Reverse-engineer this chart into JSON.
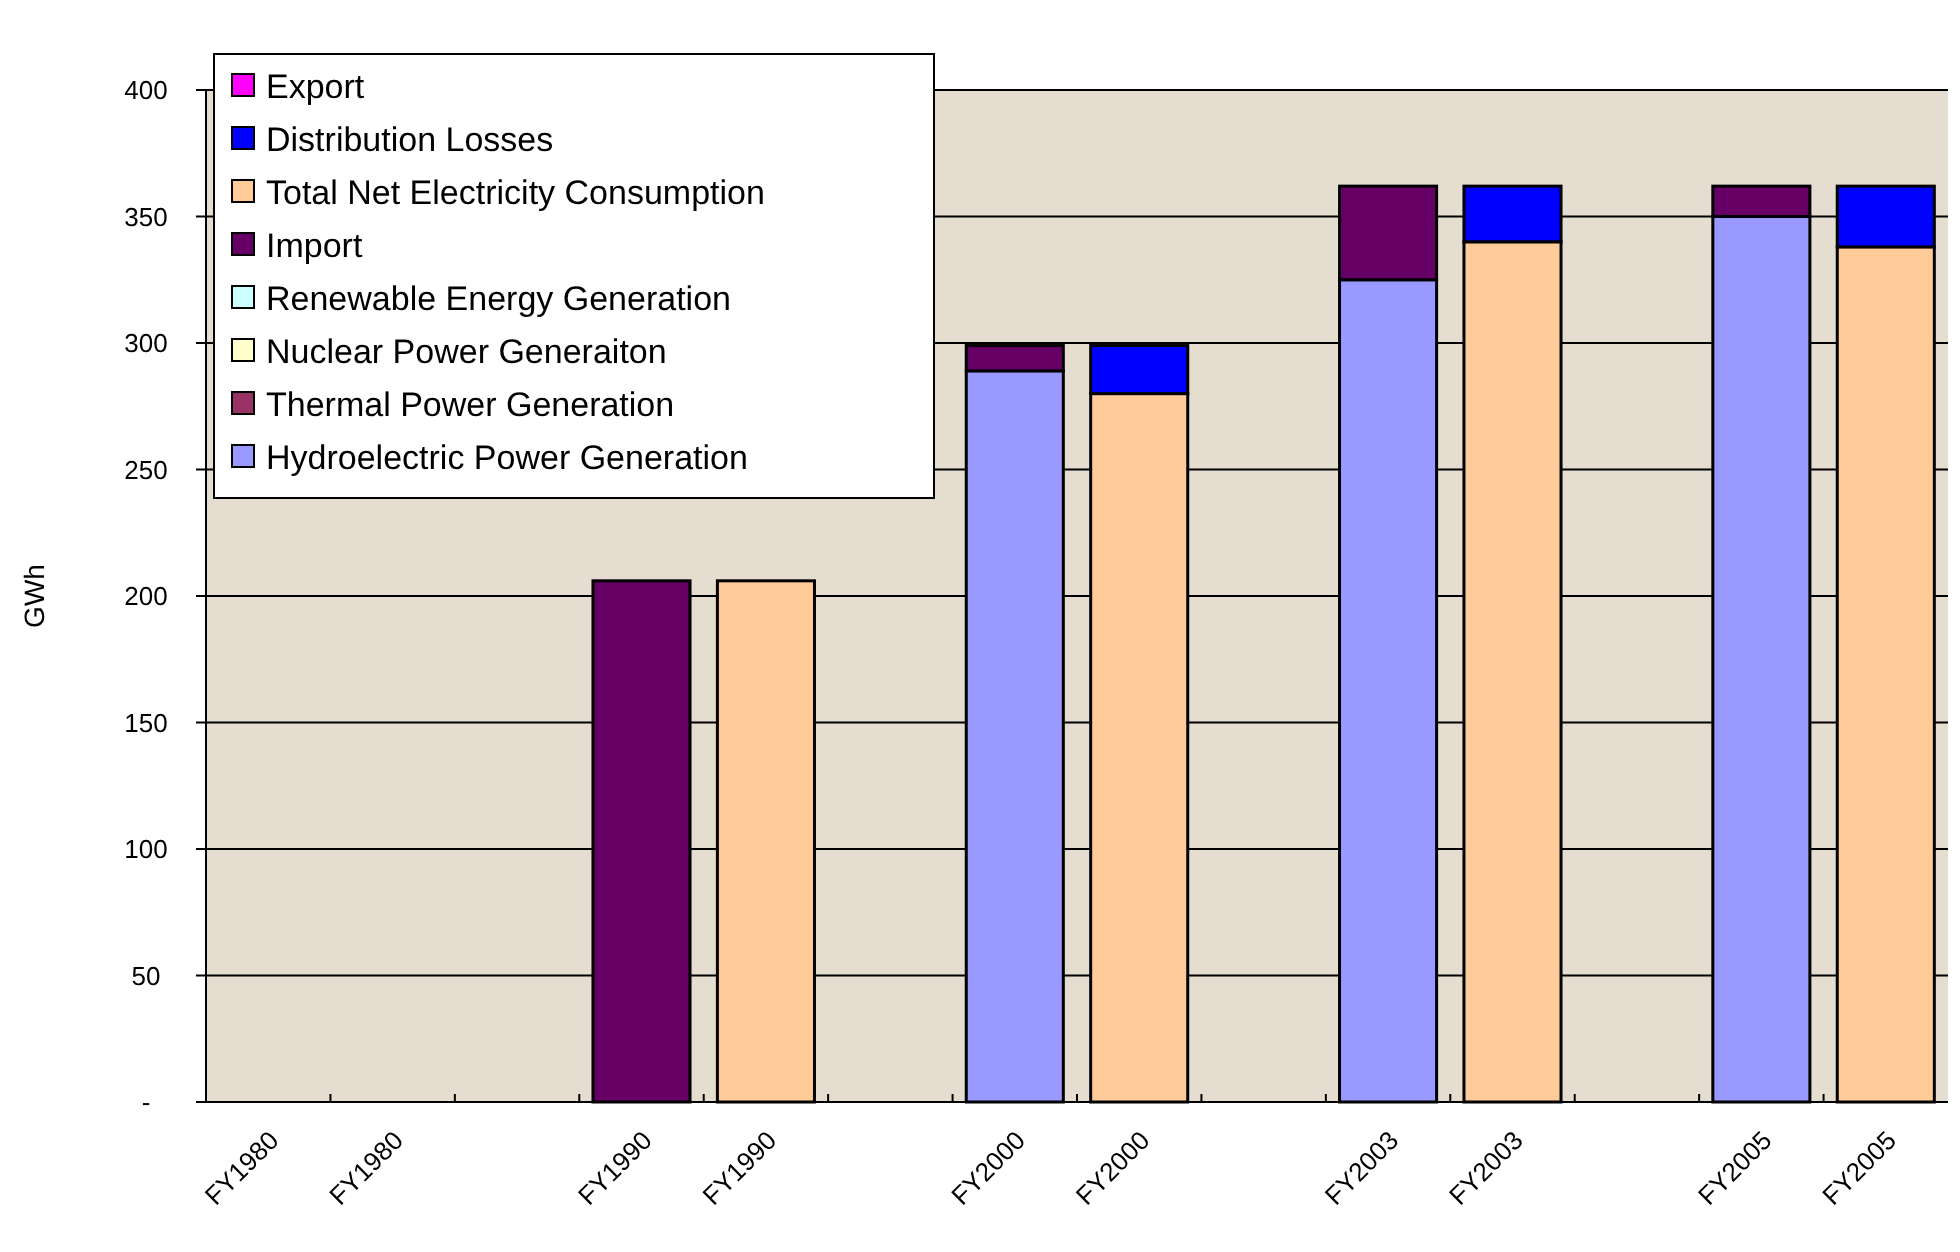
{
  "chart_data": {
    "type": "bar",
    "stacked": true,
    "ylabel": "GWh",
    "categories": [
      "FY1980",
      "FY1980",
      null,
      "FY1990",
      "FY1990",
      null,
      "FY2000",
      "FY2000",
      null,
      "FY2003",
      "FY2003",
      null,
      "FY2005",
      "FY2005"
    ],
    "series": [
      {
        "name": "Hydroelectric Power Generation",
        "color": "#9999ff",
        "values": [
          0,
          null,
          null,
          0,
          null,
          null,
          289,
          null,
          null,
          325,
          null,
          null,
          350,
          null
        ]
      },
      {
        "name": "Thermal Power Generation",
        "color": "#993366",
        "values": [
          0,
          null,
          null,
          0,
          null,
          null,
          0,
          null,
          null,
          0,
          null,
          null,
          0,
          null
        ]
      },
      {
        "name": "Nuclear Power Generaiton",
        "color": "#ffffcc",
        "values": [
          0,
          null,
          null,
          0,
          null,
          null,
          0,
          null,
          null,
          0,
          null,
          null,
          0,
          null
        ]
      },
      {
        "name": "Renewable Energy Generation",
        "color": "#ccffff",
        "values": [
          0,
          null,
          null,
          0,
          null,
          null,
          0,
          null,
          null,
          0,
          null,
          null,
          0,
          null
        ]
      },
      {
        "name": "Import",
        "color": "#660066",
        "values": [
          0,
          null,
          null,
          206,
          null,
          null,
          10,
          null,
          null,
          37,
          null,
          null,
          12,
          null
        ]
      },
      {
        "name": "Total Net Electricity Consumption",
        "color": "#ffcc99",
        "values": [
          null,
          0,
          null,
          null,
          206,
          null,
          null,
          280,
          null,
          null,
          340,
          null,
          null,
          338
        ]
      },
      {
        "name": "Distribution Losses",
        "color": "#0000ff",
        "values": [
          null,
          0,
          null,
          null,
          0,
          null,
          null,
          19,
          null,
          null,
          22,
          null,
          null,
          24
        ]
      },
      {
        "name": "Export",
        "color": "#ff00ff",
        "values": [
          null,
          0,
          null,
          null,
          0,
          null,
          null,
          0,
          null,
          null,
          0,
          null,
          null,
          0
        ]
      }
    ],
    "ylim": [
      0,
      400
    ],
    "yticks": [
      {
        "value": 0,
        "label": "-"
      },
      50,
      100,
      150,
      200,
      250,
      300,
      350,
      400
    ],
    "grid": "y",
    "legend": "top left"
  }
}
